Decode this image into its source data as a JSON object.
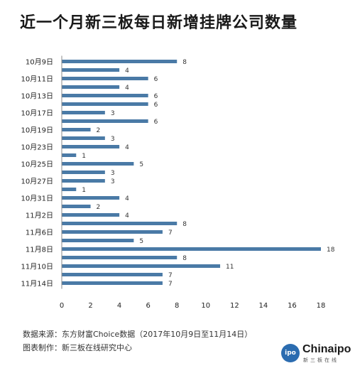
{
  "chart_data": {
    "type": "bar",
    "orientation": "horizontal",
    "title": "近一个月新三板每日新增挂牌公司数量",
    "categories": [
      "10月9日",
      "10月10日",
      "10月11日",
      "10月12日",
      "10月13日",
      "10月16日",
      "10月17日",
      "10月18日",
      "10月19日",
      "10月20日",
      "10月23日",
      "10月24日",
      "10月25日",
      "10月26日",
      "10月27日",
      "10月30日",
      "10月31日",
      "11月1日",
      "11月2日",
      "11月3日",
      "11月6日",
      "11月7日",
      "11月8日",
      "11月9日",
      "11月10日",
      "11月13日",
      "11月14日"
    ],
    "tick_labels": [
      "10月9日",
      "",
      "10月11日",
      "",
      "10月13日",
      "",
      "10月17日",
      "",
      "10月19日",
      "",
      "10月23日",
      "",
      "10月25日",
      "",
      "10月27日",
      "",
      "10月31日",
      "",
      "11月2日",
      "",
      "11月6日",
      "",
      "11月8日",
      "",
      "11月10日",
      "",
      "11月14日"
    ],
    "values": [
      8,
      4,
      6,
      4,
      6,
      6,
      3,
      6,
      2,
      3,
      4,
      1,
      5,
      3,
      3,
      1,
      4,
      2,
      4,
      8,
      7,
      5,
      18,
      8,
      11,
      7,
      7
    ],
    "xlim": [
      0,
      18
    ],
    "xticks": [
      0,
      2,
      4,
      6,
      8,
      10,
      12,
      14,
      16,
      18
    ],
    "bar_color": "#4a7aa6",
    "grid": false
  },
  "footer": {
    "source": "数据来源：东方财富Choice数据（2017年10月9日至11月14日）",
    "maker": "图表制作：新三板在线研究中心"
  },
  "logo": {
    "badge": "ipo",
    "name": "Chinaipo",
    "sub": "新三板在线"
  }
}
